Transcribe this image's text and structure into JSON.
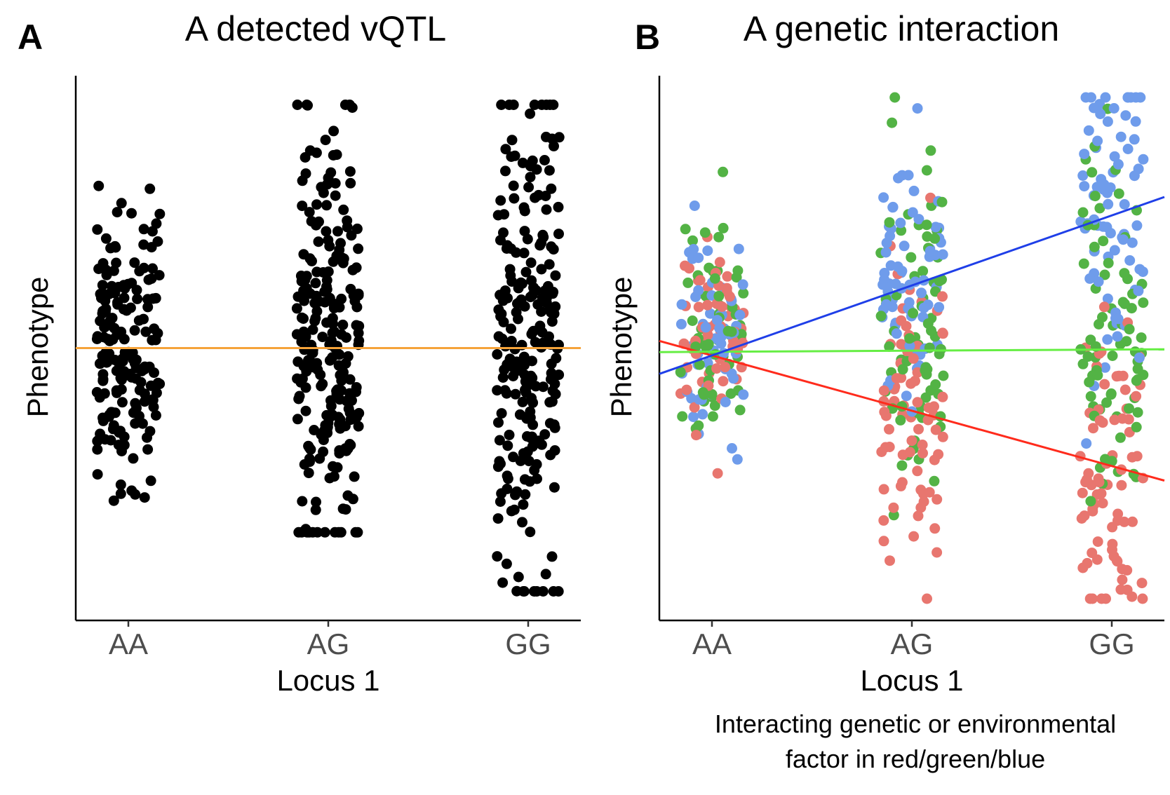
{
  "chart_data": [
    {
      "type": "scatter",
      "panel_letter": "A",
      "title": "A detected vQTL",
      "xlabel": "Locus 1",
      "ylabel": "Phenotype",
      "categories": [
        "AA",
        "AG",
        "GG"
      ],
      "ylim": [
        -3.6,
        3.6
      ],
      "series": [
        {
          "color": "#000000",
          "groups": [
            {
              "category": "AA",
              "n": 180,
              "mean": 0.0,
              "sd": 0.9,
              "min": -2.1,
              "max": 2.2
            },
            {
              "category": "AG",
              "n": 230,
              "mean": 0.0,
              "sd": 1.4,
              "min": -2.5,
              "max": 3.3
            },
            {
              "category": "GG",
              "n": 230,
              "mean": 0.0,
              "sd": 1.8,
              "min": -3.3,
              "max": 3.3
            }
          ]
        }
      ],
      "lines": [
        {
          "color": "#f5a33a",
          "y_at_AA": 0.0,
          "y_at_GG": 0.0
        }
      ],
      "grid": false,
      "legend": "none"
    },
    {
      "type": "scatter",
      "panel_letter": "B",
      "title": "A genetic interaction",
      "xlabel": "Locus 1",
      "ylabel": "Phenotype",
      "caption": "Interacting genetic or environmental factor in red/green/blue",
      "categories": [
        "AA",
        "AG",
        "GG"
      ],
      "ylim": [
        -3.6,
        3.6
      ],
      "series": [
        {
          "color": "#e8766f",
          "groups": [
            {
              "category": "AA",
              "n": 60,
              "mean": 0.3,
              "sd": 0.6
            },
            {
              "category": "AG",
              "n": 75,
              "mean": -0.9,
              "sd": 1.0
            },
            {
              "category": "GG",
              "n": 75,
              "mean": -1.8,
              "sd": 1.2
            }
          ]
        },
        {
          "color": "#53b345",
          "groups": [
            {
              "category": "AA",
              "n": 60,
              "mean": 0.1,
              "sd": 0.8
            },
            {
              "category": "AG",
              "n": 75,
              "mean": 0.2,
              "sd": 1.1
            },
            {
              "category": "GG",
              "n": 75,
              "mean": 0.2,
              "sd": 1.2
            }
          ]
        },
        {
          "color": "#6f9ceb",
          "groups": [
            {
              "category": "AA",
              "n": 60,
              "mean": 0.2,
              "sd": 0.8
            },
            {
              "category": "AG",
              "n": 75,
              "mean": 0.9,
              "sd": 0.9
            },
            {
              "category": "GG",
              "n": 75,
              "mean": 2.1,
              "sd": 1.2
            }
          ]
        }
      ],
      "lines": [
        {
          "color": "#ff2b1c",
          "y_at_AA": -0.1,
          "y_at_GG": -1.6
        },
        {
          "color": "#66ee44",
          "y_at_AA": -0.05,
          "y_at_GG": -0.02
        },
        {
          "color": "#1f3fe8",
          "y_at_AA": -0.1,
          "y_at_GG": 1.8
        }
      ],
      "grid": false,
      "legend": "none"
    }
  ]
}
